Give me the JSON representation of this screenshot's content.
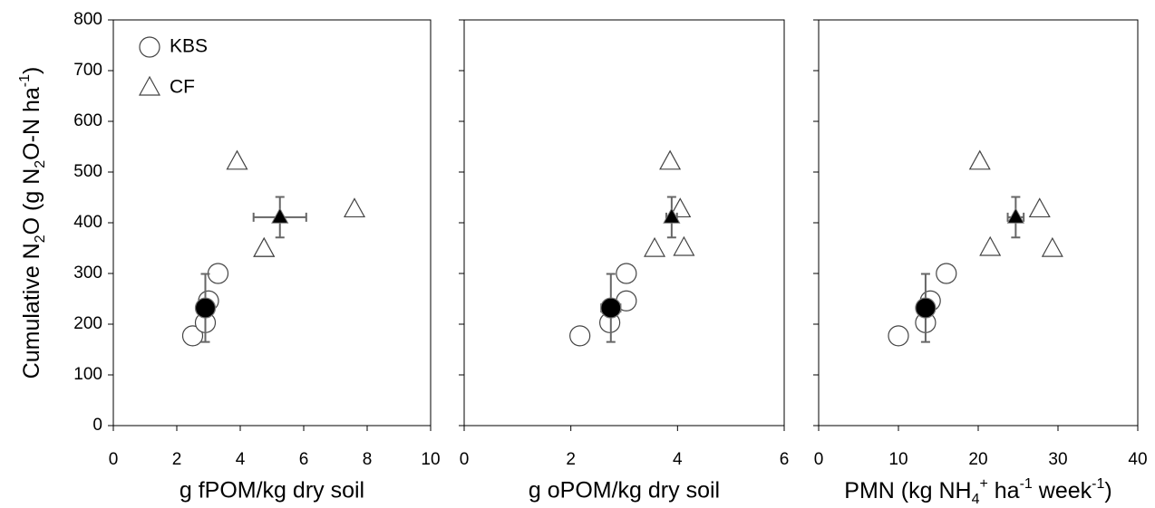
{
  "chart_data": [
    {
      "type": "scatter",
      "legend": "upper left",
      "yticklabels": true,
      "ylabel": [
        {
          "text": "Cumulative N"
        },
        {
          "text": "2",
          "shift": "sub"
        },
        {
          "text": "O (g N"
        },
        {
          "text": "2",
          "shift": "sub"
        },
        {
          "text": "O-N ha"
        },
        {
          "text": "-1",
          "shift": "super"
        },
        {
          "text": ")"
        }
      ],
      "xlabel": "g fPOM/kg dry soil",
      "xlim": [
        0,
        10
      ],
      "xticks": [
        0,
        2,
        4,
        6,
        8,
        10
      ],
      "ylim": [
        0,
        800
      ],
      "yticks": [
        0,
        100,
        200,
        300,
        400,
        500,
        600,
        700,
        800
      ],
      "series": [
        {
          "name": "KBS",
          "marker": "circle",
          "x": [
            2.5,
            2.9,
            3.0,
            3.3
          ],
          "y": [
            177,
            203,
            246,
            300
          ],
          "mean": {
            "x": 2.9,
            "y": 232,
            "xerr": 0.15,
            "yerr": 67
          }
        },
        {
          "name": "CF",
          "marker": "triangle",
          "x": [
            3.9,
            4.75,
            4.75,
            7.6
          ],
          "y": [
            520,
            348,
            348,
            426
          ],
          "mean": {
            "x": 5.25,
            "y": 411,
            "xerr": 0.83,
            "yerr": 40
          }
        }
      ]
    },
    {
      "type": "scatter",
      "yticklabels": false,
      "xlabel": "g oPOM/kg dry soil",
      "xlim": [
        0,
        6
      ],
      "xticks": [
        0,
        2,
        4,
        6
      ],
      "ylim": [
        0,
        800
      ],
      "yticks": [
        0,
        100,
        200,
        300,
        400,
        500,
        600,
        700,
        800
      ],
      "series": [
        {
          "marker": "circle",
          "x": [
            2.17,
            2.73,
            3.04,
            3.04
          ],
          "y": [
            177,
            203,
            246,
            300
          ],
          "mean": {
            "x": 2.75,
            "y": 232,
            "xerr": 0.18,
            "yerr": 67
          }
        },
        {
          "marker": "triangle",
          "x": [
            3.86,
            3.57,
            4.12,
            4.05
          ],
          "y": [
            520,
            348,
            350,
            426
          ],
          "mean": {
            "x": 3.89,
            "y": 411,
            "xerr": 0.1,
            "yerr": 40
          }
        }
      ]
    },
    {
      "type": "scatter",
      "yticklabels": false,
      "xlabel": [
        {
          "text": "PMN (kg NH"
        },
        {
          "text": "4",
          "shift": "sub"
        },
        {
          "text": "+",
          "shift": "super"
        },
        {
          "text": " ha"
        },
        {
          "text": "-1",
          "shift": "super"
        },
        {
          "text": " week"
        },
        {
          "text": "-1",
          "shift": "super"
        },
        {
          "text": ")"
        }
      ],
      "xlim": [
        0,
        40
      ],
      "xticks": [
        0,
        10,
        20,
        30,
        40
      ],
      "ylim": [
        0,
        800
      ],
      "yticks": [
        0,
        100,
        200,
        300,
        400,
        500,
        600,
        700,
        800
      ],
      "series": [
        {
          "marker": "circle",
          "x": [
            10.0,
            13.4,
            14.0,
            16.0
          ],
          "y": [
            177,
            203,
            246,
            300
          ],
          "mean": {
            "x": 13.4,
            "y": 232,
            "xerr": 0.8,
            "yerr": 67
          }
        },
        {
          "marker": "triangle",
          "x": [
            20.2,
            21.5,
            27.7,
            29.3
          ],
          "y": [
            520,
            350,
            426,
            348
          ],
          "mean": {
            "x": 24.7,
            "y": 411,
            "xerr": 1.0,
            "yerr": 40
          }
        }
      ]
    }
  ]
}
